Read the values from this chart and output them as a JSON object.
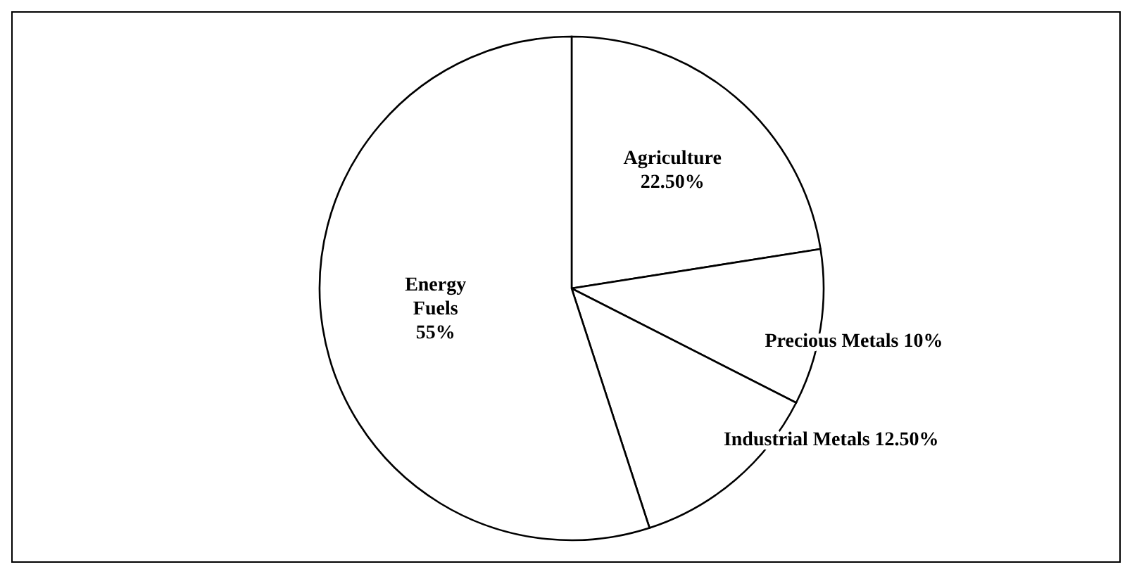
{
  "chart_data": {
    "type": "pie",
    "categories": [
      "Agriculture",
      "Precious Metals",
      "Industrial Metals",
      "Energy Fuels"
    ],
    "values": [
      22.5,
      10,
      12.5,
      55
    ],
    "value_labels": [
      "22.50%",
      "10%",
      "12.50%",
      "55%"
    ],
    "colors": [
      "#ffffff",
      "#ffffff",
      "#ffffff",
      "#ffffff"
    ]
  }
}
